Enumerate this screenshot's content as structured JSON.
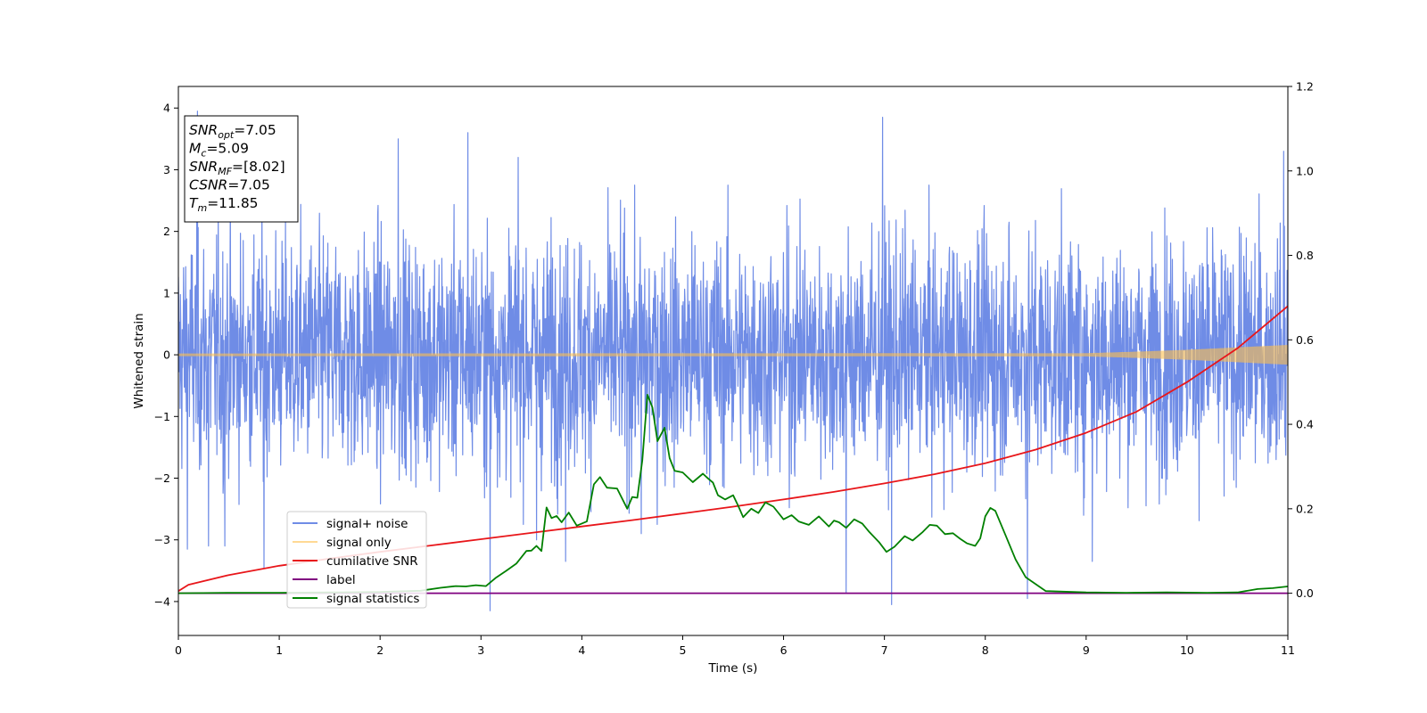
{
  "chart_data": {
    "type": "line",
    "xlabel": "Time (s)",
    "ylabel": "Whitened strain",
    "xlim": [
      0,
      11
    ],
    "ylim": [
      -4.55,
      4.35
    ],
    "y2lim": [
      -0.1,
      1.2
    ],
    "x_ticks": [
      0,
      1,
      2,
      3,
      4,
      5,
      6,
      7,
      8,
      9,
      10,
      11
    ],
    "y_ticks": [
      -4,
      -3,
      -2,
      -1,
      0,
      1,
      2,
      3,
      4
    ],
    "y2_ticks": [
      0.0,
      0.2,
      0.4,
      0.6,
      0.8,
      1.0,
      1.2
    ],
    "x_tick_labels": [
      "0",
      "1",
      "2",
      "3",
      "4",
      "5",
      "6",
      "7",
      "8",
      "9",
      "10",
      "11"
    ],
    "y_tick_labels": [
      "−4",
      "−3",
      "−2",
      "−1",
      "0",
      "1",
      "2",
      "3",
      "4"
    ],
    "y2_tick_labels": [
      "0.0",
      "0.2",
      "0.4",
      "0.6",
      "0.8",
      "1.0",
      "1.2"
    ],
    "legend_position": "lower-left",
    "grid": false,
    "info_box": {
      "position": "top-left",
      "lines": [
        {
          "main": "SNR",
          "sub": "opt",
          "value": "=7.05"
        },
        {
          "main": "M",
          "sub": "c",
          "value": "=5.09"
        },
        {
          "main": "SNR",
          "sub": "MF",
          "value": "=[8.02]"
        },
        {
          "main": "CSNR",
          "sub": "",
          "value": "=7.05"
        },
        {
          "main": "T",
          "sub": "m",
          "value": "=11.85"
        }
      ]
    },
    "series": [
      {
        "name": "signal+ noise",
        "axis": "left",
        "color": "#6f8ce6",
        "description": "noisy whitened strain, amplitude roughly ±2 with spikes to ±4",
        "spikes": [
          {
            "x": 0.19,
            "y": 3.95
          },
          {
            "x": 0.09,
            "y": -3.15
          },
          {
            "x": 0.3,
            "y": -3.1
          },
          {
            "x": 0.46,
            "y": -3.1
          },
          {
            "x": 0.85,
            "y": -3.45
          },
          {
            "x": 2.18,
            "y": 3.5
          },
          {
            "x": 2.87,
            "y": 3.6
          },
          {
            "x": 3.09,
            "y": -4.15
          },
          {
            "x": 3.37,
            "y": 3.2
          },
          {
            "x": 3.55,
            "y": -3.0
          },
          {
            "x": 3.84,
            "y": -3.35
          },
          {
            "x": 4.59,
            "y": -2.9
          },
          {
            "x": 6.62,
            "y": -3.85
          },
          {
            "x": 6.98,
            "y": 3.85
          },
          {
            "x": 7.07,
            "y": -4.05
          },
          {
            "x": 8.42,
            "y": -3.95
          },
          {
            "x": 9.06,
            "y": -3.35
          },
          {
            "x": 10.96,
            "y": 3.3
          }
        ]
      },
      {
        "name": "signal only",
        "axis": "left",
        "color": "#ffc04d",
        "envelope": {
          "x": [
            0,
            9,
            9.5,
            10,
            10.5,
            11
          ],
          "amp": [
            0.02,
            0.025,
            0.05,
            0.08,
            0.12,
            0.16
          ]
        }
      },
      {
        "name": "cumilative SNR",
        "axis": "right",
        "color": "#e8161a",
        "x": [
          0,
          0.1,
          0.5,
          1,
          1.5,
          2,
          2.5,
          3,
          3.5,
          4,
          4.5,
          5,
          5.5,
          6,
          6.5,
          7,
          7.5,
          8,
          8.5,
          9,
          9.5,
          10,
          10.5,
          11
        ],
        "y": [
          0.005,
          0.02,
          0.043,
          0.065,
          0.082,
          0.098,
          0.113,
          0.128,
          0.143,
          0.158,
          0.173,
          0.189,
          0.205,
          0.222,
          0.24,
          0.26,
          0.282,
          0.308,
          0.34,
          0.38,
          0.43,
          0.5,
          0.58,
          0.68
        ]
      },
      {
        "name": "label",
        "axis": "right",
        "color": "#800080",
        "x": [
          0,
          11
        ],
        "y": [
          0.0,
          0.0
        ]
      },
      {
        "name": "signal statistics",
        "axis": "right",
        "color": "#008000",
        "x": [
          0,
          0.5,
          1,
          1.5,
          2,
          2.4,
          2.6,
          2.75,
          2.85,
          2.95,
          3.05,
          3.15,
          3.25,
          3.35,
          3.45,
          3.5,
          3.55,
          3.6,
          3.65,
          3.7,
          3.75,
          3.8,
          3.87,
          3.95,
          4.05,
          4.12,
          4.18,
          4.25,
          4.35,
          4.45,
          4.5,
          4.55,
          4.6,
          4.65,
          4.7,
          4.75,
          4.82,
          4.87,
          4.92,
          5.0,
          5.1,
          5.2,
          5.25,
          5.3,
          5.35,
          5.42,
          5.5,
          5.55,
          5.6,
          5.68,
          5.75,
          5.82,
          5.9,
          6.0,
          6.08,
          6.15,
          6.25,
          6.3,
          6.35,
          6.45,
          6.5,
          6.55,
          6.62,
          6.7,
          6.78,
          6.85,
          6.95,
          7.02,
          7.1,
          7.2,
          7.28,
          7.38,
          7.45,
          7.52,
          7.6,
          7.68,
          7.75,
          7.82,
          7.9,
          7.95,
          8.0,
          8.05,
          8.1,
          8.2,
          8.3,
          8.4,
          8.6,
          9.0,
          9.4,
          9.8,
          10.2,
          10.5,
          10.7,
          10.85,
          11.0
        ],
        "y": [
          0.0,
          0.001,
          0.001,
          0.002,
          0.003,
          0.006,
          0.013,
          0.017,
          0.016,
          0.019,
          0.017,
          0.037,
          0.053,
          0.07,
          0.1,
          0.101,
          0.112,
          0.1,
          0.203,
          0.178,
          0.183,
          0.168,
          0.191,
          0.16,
          0.17,
          0.258,
          0.275,
          0.25,
          0.248,
          0.2,
          0.228,
          0.226,
          0.315,
          0.47,
          0.44,
          0.36,
          0.392,
          0.32,
          0.29,
          0.286,
          0.263,
          0.283,
          0.272,
          0.262,
          0.232,
          0.222,
          0.232,
          0.207,
          0.18,
          0.2,
          0.19,
          0.215,
          0.205,
          0.175,
          0.185,
          0.17,
          0.162,
          0.172,
          0.182,
          0.158,
          0.172,
          0.168,
          0.155,
          0.175,
          0.165,
          0.145,
          0.12,
          0.098,
          0.11,
          0.135,
          0.125,
          0.145,
          0.162,
          0.16,
          0.14,
          0.142,
          0.129,
          0.118,
          0.112,
          0.13,
          0.182,
          0.202,
          0.195,
          0.138,
          0.08,
          0.038,
          0.005,
          0.002,
          0.001,
          0.002,
          0.001,
          0.002,
          0.01,
          0.012,
          0.016
        ]
      }
    ]
  }
}
